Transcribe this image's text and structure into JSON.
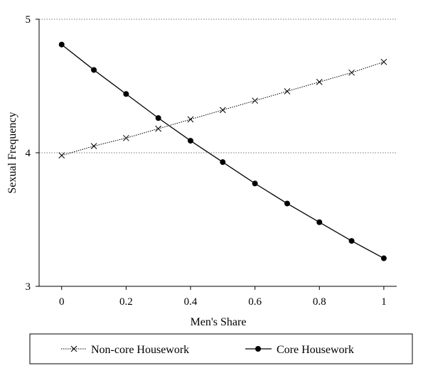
{
  "chart_data": {
    "type": "line",
    "title": "",
    "xlabel": "Men's Share",
    "ylabel": "Sexual Frequency",
    "xlim": [
      -0.07,
      1.04
    ],
    "ylim": [
      3,
      5
    ],
    "x_ticks": [
      0,
      0.2,
      0.4,
      0.6,
      0.8,
      1
    ],
    "x_tick_labels": [
      "0",
      "0.2",
      "0.4",
      "0.6",
      "0.8",
      "1"
    ],
    "y_ticks": [
      3,
      4,
      5
    ],
    "y_tick_labels": [
      "3",
      "4",
      "5"
    ],
    "grid": "dotted horizontal at y=4 and y=5",
    "legend_position": "bottom",
    "x": [
      0,
      0.1,
      0.2,
      0.3,
      0.4,
      0.5,
      0.6,
      0.7,
      0.8,
      0.9,
      1.0
    ],
    "series": [
      {
        "name": "Non-core Housework",
        "marker": "x",
        "line_style": "dotted",
        "color": "#000000",
        "values": [
          3.98,
          4.05,
          4.11,
          4.18,
          4.25,
          4.32,
          4.39,
          4.46,
          4.53,
          4.6,
          4.68
        ]
      },
      {
        "name": "Core Housework",
        "marker": "filled-circle",
        "line_style": "solid",
        "color": "#000000",
        "values": [
          4.81,
          4.62,
          4.44,
          4.26,
          4.09,
          3.93,
          3.77,
          3.62,
          3.48,
          3.34,
          3.21
        ]
      }
    ]
  }
}
